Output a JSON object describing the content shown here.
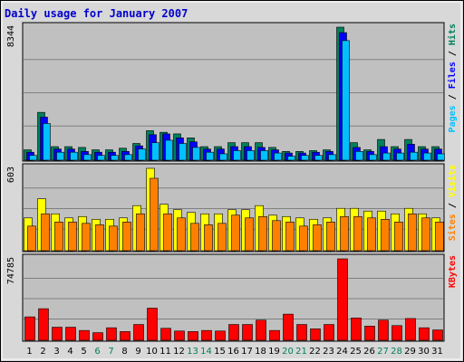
{
  "chart_data": {
    "type": "bar",
    "title": "Daily usage for January 2007",
    "colors": {
      "hits": "#00805c",
      "files": "#0000ff",
      "pages": "#00c0ff",
      "visits": "#ffff00",
      "sites": "#ff8000",
      "kbytes": "#ff0000",
      "weekend_tick": "#00805c",
      "weekday_tick": "#000000",
      "plot_bg": "#c0c0c0",
      "frame_bg": "#d8d8d8",
      "title": "#0000cc"
    },
    "days": [
      "1",
      "2",
      "3",
      "4",
      "5",
      "6",
      "7",
      "8",
      "9",
      "10",
      "11",
      "12",
      "13",
      "14",
      "15",
      "16",
      "17",
      "18",
      "19",
      "20",
      "21",
      "22",
      "23",
      "24",
      "25",
      "26",
      "27",
      "28",
      "29",
      "30",
      "31"
    ],
    "weekend_days": [
      "6",
      "7",
      "13",
      "14",
      "20",
      "21",
      "27",
      "28"
    ],
    "panels": [
      {
        "max_label": "8344",
        "ymax": 8344,
        "legend": [
          {
            "text": "Pages",
            "color": "#00c0ff"
          },
          {
            "text": " / ",
            "color": "#000000"
          },
          {
            "text": "Files",
            "color": "#0000ff"
          },
          {
            "text": " / ",
            "color": "#000000"
          },
          {
            "text": "Hits",
            "color": "#00805c"
          }
        ],
        "series": [
          {
            "name": "Hits",
            "color": "#00805c",
            "values": [
              650,
              3000,
              850,
              850,
              800,
              650,
              650,
              750,
              1050,
              1850,
              1750,
              1650,
              1400,
              850,
              850,
              1100,
              1100,
              1100,
              800,
              550,
              550,
              600,
              650,
              8344,
              1100,
              650,
              1300,
              850,
              1300,
              850,
              850
            ]
          },
          {
            "name": "Files",
            "color": "#0000ff",
            "values": [
              500,
              2700,
              700,
              700,
              550,
              500,
              500,
              550,
              900,
              1600,
              1650,
              1400,
              1150,
              700,
              700,
              850,
              850,
              800,
              650,
              450,
              450,
              500,
              550,
              8000,
              800,
              550,
              850,
              700,
              1000,
              700,
              700
            ]
          },
          {
            "name": "Pages",
            "color": "#00c0ff",
            "values": [
              300,
              2300,
              500,
              500,
              350,
              300,
              300,
              350,
              700,
              1100,
              1250,
              1050,
              800,
              500,
              400,
              600,
              600,
              600,
              450,
              250,
              300,
              300,
              350,
              7500,
              550,
              350,
              450,
              450,
              500,
              450,
              400
            ]
          }
        ]
      },
      {
        "max_label": "603",
        "ymax": 603,
        "legend": [
          {
            "text": "Sites",
            "color": "#ff8000"
          },
          {
            "text": " / ",
            "color": "#000000"
          },
          {
            "text": "Visits",
            "color": "#ffff00"
          }
        ],
        "series": [
          {
            "name": "Visits",
            "color": "#ffff00",
            "values": [
              240,
              380,
              270,
              240,
              250,
              230,
              230,
              240,
              330,
              603,
              340,
              300,
              280,
              270,
              270,
              300,
              300,
              330,
              260,
              250,
              240,
              230,
              240,
              310,
              310,
              290,
              290,
              270,
              310,
              270,
              240
            ]
          },
          {
            "name": "Sites",
            "color": "#ff8000",
            "values": [
              180,
              270,
              210,
              210,
              200,
              190,
              180,
              210,
              270,
              530,
              270,
              240,
              200,
              190,
              200,
              260,
              240,
              250,
              220,
              210,
              180,
              190,
              210,
              250,
              250,
              240,
              230,
              210,
              270,
              240,
              210
            ]
          }
        ]
      },
      {
        "max_label": "74785",
        "ymax": 74785,
        "legend": [
          {
            "text": "KBytes",
            "color": "#ff0000"
          }
        ],
        "series": [
          {
            "name": "KBytes",
            "color": "#ff0000",
            "values": [
              21500,
              29000,
              12000,
              12000,
              9000,
              7000,
              11500,
              8000,
              14500,
              29500,
              11000,
              8500,
              8000,
              9000,
              8500,
              14500,
              14500,
              18500,
              9000,
              24000,
              14500,
              10500,
              14500,
              74785,
              20500,
              13000,
              18500,
              13500,
              20000,
              11500,
              9500
            ]
          }
        ]
      }
    ]
  }
}
